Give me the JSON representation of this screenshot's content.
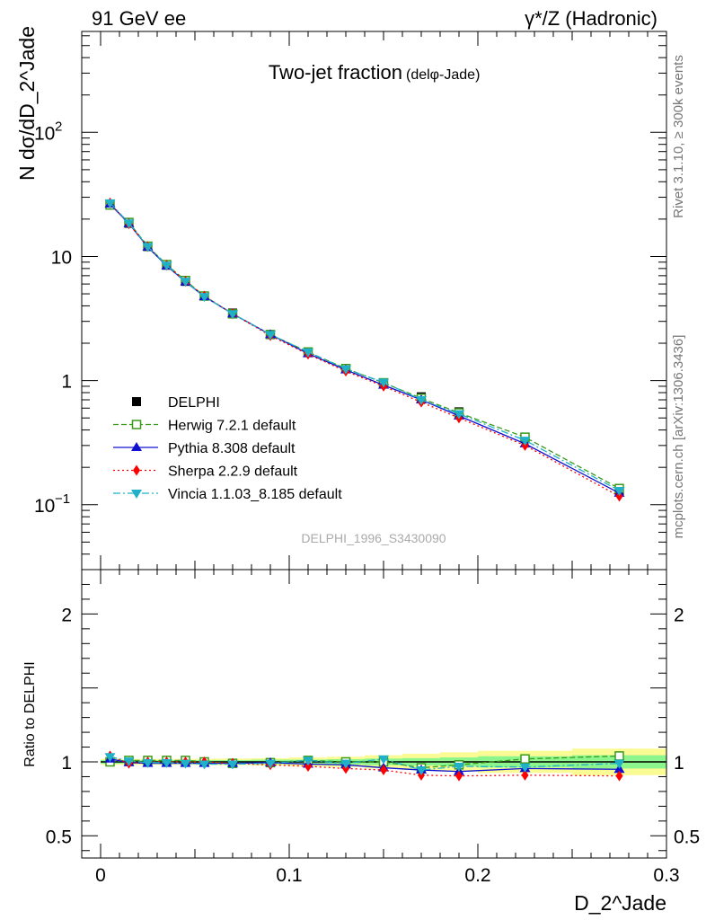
{
  "header": {
    "left": "91 GeV ee",
    "right": "γ*/Z (Hadronic)"
  },
  "side": {
    "rivet": "Rivet 3.1.10, ≥ 300k events",
    "mcplots": "mcplots.cern.ch [arXiv:1306.3436]"
  },
  "colors": {
    "data": "#000000",
    "herwig": "#3a9a1a",
    "pythia": "#1010d0",
    "sherpa": "#ff0000",
    "vincia": "#20b0c8",
    "band_inner": "#8cf58c",
    "band_outer": "#fbfb96"
  },
  "chart_data": [
    {
      "type": "line",
      "title": "Two-jet fraction",
      "title_small": "(delφ-Jade)",
      "watermark": "DELPHI_1996_S3430090",
      "xlabel": "",
      "ylabel": "N dσ/dD_2^Jade",
      "yscale": "log",
      "xlim": [
        -0.01,
        0.3
      ],
      "ylim": [
        0.03,
        650
      ],
      "y_ticks": [
        {
          "v": 0.1,
          "base": "10",
          "exp": "−1"
        },
        {
          "v": 1,
          "label": "1"
        },
        {
          "v": 10,
          "label": "10"
        },
        {
          "v": 100,
          "base": "10",
          "exp": "2"
        }
      ],
      "x": [
        0.005,
        0.015,
        0.025,
        0.035,
        0.045,
        0.055,
        0.07,
        0.09,
        0.11,
        0.13,
        0.15,
        0.17,
        0.19,
        0.225,
        0.275
      ],
      "series": [
        {
          "name": "DELPHI",
          "key": "data",
          "marker": "square",
          "line": "none",
          "values": [
            26.0,
            18.5,
            12.0,
            8.5,
            6.3,
            4.8,
            3.5,
            2.35,
            1.68,
            1.25,
            0.95,
            0.74,
            0.56,
            0.34,
            0.13
          ]
        },
        {
          "name": "Herwig 7.2.1 default",
          "key": "herwig",
          "marker": "open-square",
          "line": "dashed",
          "values": [
            26.0,
            18.8,
            12.1,
            8.6,
            6.4,
            4.8,
            3.45,
            2.35,
            1.7,
            1.25,
            0.96,
            0.72,
            0.55,
            0.35,
            0.135
          ]
        },
        {
          "name": "Pythia 8.308 default",
          "key": "pythia",
          "marker": "triangle-up",
          "line": "solid",
          "values": [
            26.5,
            18.4,
            11.9,
            8.4,
            6.25,
            4.75,
            3.45,
            2.35,
            1.65,
            1.22,
            0.92,
            0.7,
            0.52,
            0.31,
            0.124
          ]
        },
        {
          "name": "Sherpa 2.2.9 default",
          "key": "sherpa",
          "marker": "diamond",
          "line": "dotted",
          "values": [
            27.0,
            18.3,
            12.0,
            8.5,
            6.3,
            4.8,
            3.45,
            2.3,
            1.63,
            1.19,
            0.9,
            0.67,
            0.5,
            0.3,
            0.117
          ]
        },
        {
          "name": "Vincia 1.1.03_8.185 default",
          "key": "vincia",
          "marker": "triangle-down",
          "line": "dashdot",
          "values": [
            27.0,
            18.6,
            12.0,
            8.5,
            6.3,
            4.75,
            3.45,
            2.35,
            1.7,
            1.24,
            0.97,
            0.7,
            0.54,
            0.33,
            0.13
          ]
        }
      ]
    },
    {
      "type": "line",
      "title": "",
      "xlabel": "D_2^Jade",
      "ylabel": "Ratio to DELPHI",
      "yscale": "linear",
      "xlim": [
        -0.01,
        0.3
      ],
      "ylim": [
        0.35,
        2.3
      ],
      "y_ticks": [
        {
          "v": 0.5,
          "label": "0.5"
        },
        {
          "v": 1,
          "label": "1"
        },
        {
          "v": 2,
          "label": "2"
        }
      ],
      "x_ticks": [
        {
          "v": 0,
          "label": "0"
        },
        {
          "v": 0.1,
          "label": "0.1"
        },
        {
          "v": 0.2,
          "label": "0.2"
        },
        {
          "v": 0.3,
          "label": "0.3"
        }
      ],
      "band_edges": [
        0.0,
        0.01,
        0.02,
        0.03,
        0.04,
        0.05,
        0.06,
        0.08,
        0.1,
        0.12,
        0.14,
        0.16,
        0.18,
        0.2,
        0.25,
        0.3
      ],
      "band_inner": [
        0.012,
        0.012,
        0.012,
        0.012,
        0.012,
        0.012,
        0.012,
        0.015,
        0.015,
        0.018,
        0.022,
        0.025,
        0.03,
        0.038,
        0.045
      ],
      "band_outer": [
        0.02,
        0.02,
        0.02,
        0.02,
        0.02,
        0.02,
        0.022,
        0.025,
        0.03,
        0.035,
        0.045,
        0.055,
        0.065,
        0.075,
        0.09
      ],
      "series": [
        {
          "name": "Herwig 7.2.1 default",
          "key": "herwig",
          "marker": "open-square",
          "line": "dashed",
          "values": [
            1.0,
            1.01,
            1.01,
            1.01,
            1.01,
            1.0,
            0.99,
            0.995,
            1.01,
            1.0,
            1.0,
            0.96,
            0.98,
            1.02,
            1.04
          ]
        },
        {
          "name": "Pythia 8.308 default",
          "key": "pythia",
          "marker": "triangle-up",
          "line": "solid",
          "values": [
            1.02,
            0.995,
            0.99,
            0.99,
            0.99,
            0.99,
            0.99,
            0.995,
            0.985,
            0.98,
            0.96,
            0.945,
            0.935,
            0.955,
            0.95
          ]
        },
        {
          "name": "Sherpa 2.2.9 default",
          "key": "sherpa",
          "marker": "diamond",
          "line": "dotted",
          "values": [
            1.04,
            0.99,
            1.0,
            1.0,
            1.0,
            1.0,
            0.99,
            0.98,
            0.97,
            0.955,
            0.945,
            0.91,
            0.905,
            0.91,
            0.905
          ]
        },
        {
          "name": "Vincia 1.1.03_8.185 default",
          "key": "vincia",
          "marker": "triangle-down",
          "line": "dashdot",
          "values": [
            1.035,
            1.005,
            0.995,
            0.995,
            0.99,
            0.985,
            0.985,
            0.99,
            1.01,
            0.99,
            1.02,
            0.945,
            0.97,
            0.965,
            0.99
          ]
        }
      ]
    }
  ]
}
